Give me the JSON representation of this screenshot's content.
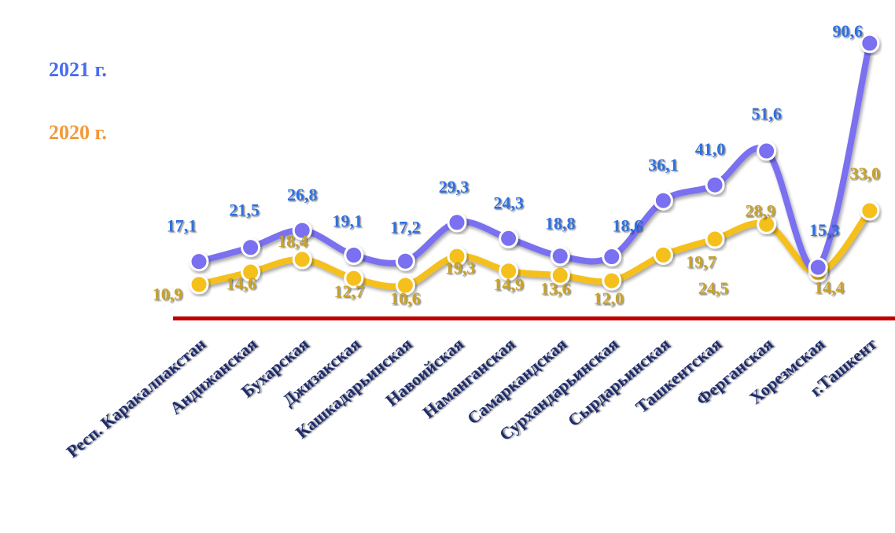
{
  "chart_data": {
    "type": "line",
    "categories": [
      "Респ. Каракалпакстан",
      "Андижанская",
      "Бухарская",
      "Джизакская",
      "Кашкадарьинская",
      "Навоийская",
      "Наманганская",
      "Самаркандская",
      "Сурхандарьинская",
      "Сырдарьинская",
      "Ташкентская",
      "Ферганская",
      "Хорезмская",
      "г.Ташкент"
    ],
    "series": [
      {
        "name": "2021 г.",
        "values": [
          17.1,
          21.5,
          26.8,
          19.1,
          17.2,
          29.3,
          24.3,
          18.8,
          18.6,
          36.1,
          41.0,
          51.6,
          15.3,
          90.6
        ],
        "labels": [
          "17,1",
          "21,5",
          "26,8",
          "19,1",
          "17,2",
          "29,3",
          "24,3",
          "18,8",
          "18,6",
          "36,1",
          "41,0",
          "51,6",
          "15,3",
          "90,6"
        ],
        "line_color": "#7a6ff0",
        "label_color": "#2f6fe0"
      },
      {
        "name": "2020 г.",
        "values": [
          10.9,
          14.6,
          18.4,
          12.7,
          10.6,
          19.3,
          14.9,
          13.6,
          12.0,
          19.7,
          24.5,
          28.9,
          14.4,
          33.0
        ],
        "labels": [
          "10,9",
          "14,6",
          "18,4",
          "12,7",
          "10,6",
          "19,3",
          "14,9",
          "13,6",
          "12,0",
          "19,7",
          "24,5",
          "28,9",
          "14,4",
          "33,0"
        ],
        "line_color": "#f5c01a",
        "label_color": "#c9a227"
      }
    ],
    "legend": {
      "label_2021": "2021 г.",
      "label_2020": "2020 г.",
      "color_2021": "#4a6cf0",
      "color_2020": "#f29a3a",
      "position": "top-left"
    },
    "baseline_color": "#c00000",
    "category_color": "#1f2a6b"
  }
}
